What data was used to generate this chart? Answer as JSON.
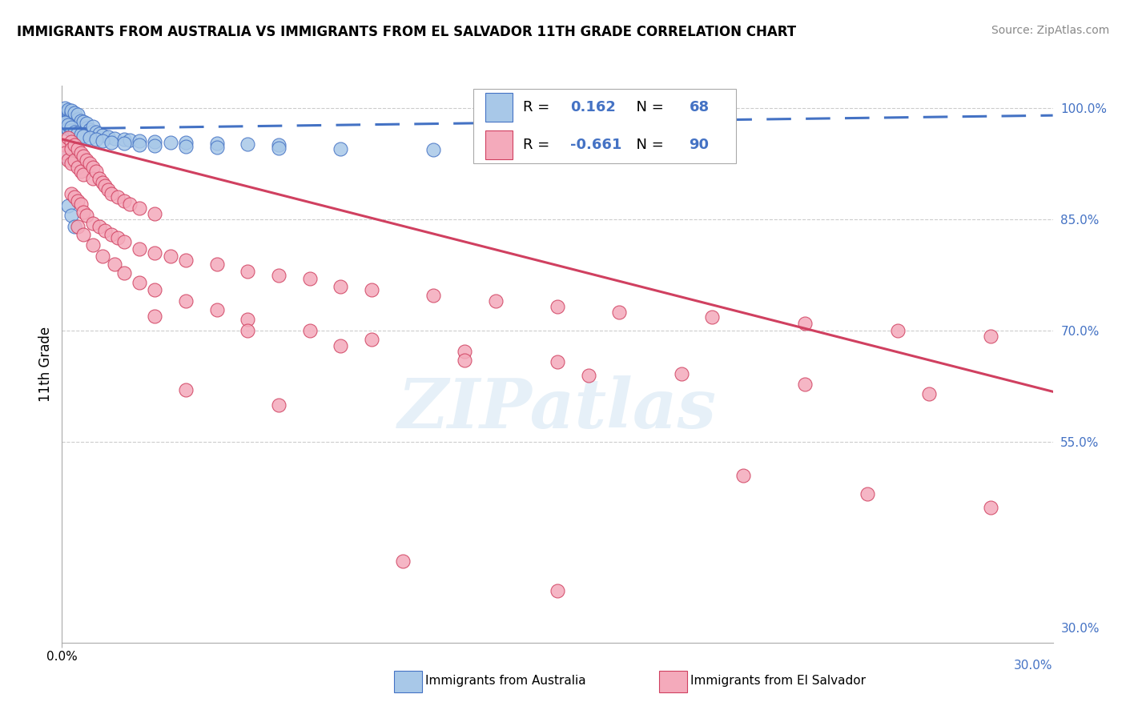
{
  "title": "IMMIGRANTS FROM AUSTRALIA VS IMMIGRANTS FROM EL SALVADOR 11TH GRADE CORRELATION CHART",
  "source": "Source: ZipAtlas.com",
  "ylabel": "11th Grade",
  "x_min": 0.0,
  "x_max": 0.032,
  "y_min": 0.28,
  "y_max": 1.03,
  "y_ticks": [
    1.0,
    0.85,
    0.7,
    0.55,
    0.3
  ],
  "y_tick_labels": [
    "100.0%",
    "85.0%",
    "70.0%",
    "55.0%",
    "30.0%"
  ],
  "legend_R_australia": "0.162",
  "legend_N_australia": "68",
  "legend_R_salvador": "-0.661",
  "legend_N_salvador": "90",
  "color_australia": "#a8c8e8",
  "color_salvador": "#f4aabb",
  "color_line_australia": "#4472c4",
  "color_line_salvador": "#d04060",
  "background_color": "#ffffff",
  "watermark": "ZIPatlas",
  "aus_line_x0": 0.0,
  "aus_line_x1": 0.032,
  "aus_line_y0": 0.972,
  "aus_line_y1": 0.99,
  "sal_line_x0": 0.0,
  "sal_line_x1": 0.032,
  "sal_line_y0": 0.958,
  "sal_line_y1": 0.618,
  "australia_x": [
    0.0001,
    0.0001,
    0.0001,
    0.0002,
    0.0002,
    0.0002,
    0.0002,
    0.0003,
    0.0003,
    0.0003,
    0.0003,
    0.0004,
    0.0004,
    0.0004,
    0.0005,
    0.0005,
    0.0005,
    0.0006,
    0.0006,
    0.0007,
    0.0007,
    0.0008,
    0.0008,
    0.0009,
    0.001,
    0.001,
    0.0011,
    0.0012,
    0.0013,
    0.0015,
    0.0017,
    0.002,
    0.0022,
    0.0025,
    0.003,
    0.0035,
    0.004,
    0.005,
    0.006,
    0.007,
    0.0001,
    0.0001,
    0.0002,
    0.0002,
    0.0003,
    0.0003,
    0.0004,
    0.0005,
    0.0006,
    0.0007,
    0.0009,
    0.0011,
    0.0013,
    0.0016,
    0.002,
    0.0025,
    0.003,
    0.004,
    0.005,
    0.007,
    0.009,
    0.012,
    0.015,
    0.019,
    0.0001,
    0.0002,
    0.0003,
    0.0004
  ],
  "australia_y": [
    0.99,
    0.995,
    1.0,
    0.988,
    0.992,
    0.996,
    0.998,
    0.985,
    0.99,
    0.993,
    0.997,
    0.982,
    0.987,
    0.993,
    0.979,
    0.985,
    0.991,
    0.977,
    0.983,
    0.975,
    0.981,
    0.973,
    0.979,
    0.971,
    0.969,
    0.975,
    0.967,
    0.965,
    0.963,
    0.961,
    0.959,
    0.958,
    0.957,
    0.956,
    0.955,
    0.954,
    0.953,
    0.952,
    0.951,
    0.95,
    0.975,
    0.98,
    0.972,
    0.977,
    0.97,
    0.974,
    0.968,
    0.966,
    0.964,
    0.962,
    0.96,
    0.958,
    0.956,
    0.954,
    0.952,
    0.95,
    0.949,
    0.948,
    0.947,
    0.946,
    0.945,
    0.944,
    0.943,
    0.942,
    0.935,
    0.868,
    0.855,
    0.84
  ],
  "salvador_x": [
    0.0001,
    0.0001,
    0.0002,
    0.0002,
    0.0003,
    0.0003,
    0.0003,
    0.0004,
    0.0004,
    0.0005,
    0.0005,
    0.0006,
    0.0006,
    0.0007,
    0.0007,
    0.0008,
    0.0009,
    0.001,
    0.001,
    0.0011,
    0.0012,
    0.0013,
    0.0014,
    0.0015,
    0.0016,
    0.0018,
    0.002,
    0.0022,
    0.0025,
    0.003,
    0.0003,
    0.0004,
    0.0005,
    0.0006,
    0.0007,
    0.0008,
    0.001,
    0.0012,
    0.0014,
    0.0016,
    0.0018,
    0.002,
    0.0025,
    0.003,
    0.0035,
    0.004,
    0.005,
    0.006,
    0.007,
    0.008,
    0.009,
    0.01,
    0.012,
    0.014,
    0.016,
    0.018,
    0.021,
    0.024,
    0.027,
    0.03,
    0.0005,
    0.0007,
    0.001,
    0.0013,
    0.0017,
    0.002,
    0.0025,
    0.003,
    0.004,
    0.005,
    0.006,
    0.008,
    0.01,
    0.013,
    0.016,
    0.02,
    0.024,
    0.028,
    0.003,
    0.006,
    0.009,
    0.013,
    0.017,
    0.022,
    0.026,
    0.03,
    0.004,
    0.007,
    0.011,
    0.016
  ],
  "salvador_y": [
    0.95,
    0.94,
    0.96,
    0.93,
    0.955,
    0.945,
    0.925,
    0.95,
    0.93,
    0.945,
    0.92,
    0.94,
    0.915,
    0.935,
    0.91,
    0.93,
    0.925,
    0.92,
    0.905,
    0.915,
    0.905,
    0.9,
    0.895,
    0.89,
    0.885,
    0.88,
    0.875,
    0.87,
    0.865,
    0.858,
    0.885,
    0.88,
    0.875,
    0.87,
    0.86,
    0.855,
    0.845,
    0.84,
    0.835,
    0.83,
    0.825,
    0.82,
    0.81,
    0.805,
    0.8,
    0.795,
    0.79,
    0.78,
    0.775,
    0.77,
    0.76,
    0.755,
    0.748,
    0.74,
    0.732,
    0.725,
    0.718,
    0.71,
    0.7,
    0.693,
    0.84,
    0.83,
    0.815,
    0.8,
    0.79,
    0.778,
    0.765,
    0.755,
    0.74,
    0.728,
    0.715,
    0.7,
    0.688,
    0.672,
    0.658,
    0.642,
    0.628,
    0.615,
    0.72,
    0.7,
    0.68,
    0.66,
    0.64,
    0.505,
    0.48,
    0.462,
    0.62,
    0.6,
    0.39,
    0.35
  ]
}
